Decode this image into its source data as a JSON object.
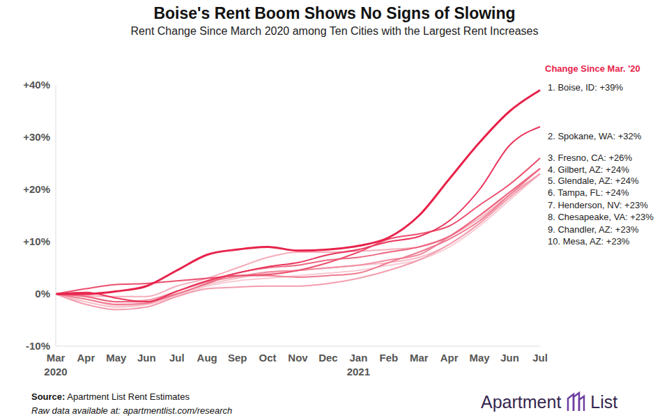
{
  "chart_data": {
    "type": "line",
    "title": "Boise's Rent Boom Shows No Signs of Slowing",
    "subtitle": "Rent Change Since March 2020 among Ten Cities with the Largest Rent Increases",
    "categories": [
      "Mar 2020",
      "Apr",
      "May",
      "Jun",
      "Jul",
      "Aug",
      "Sep",
      "Oct",
      "Nov",
      "Dec",
      "Jan 2021",
      "Feb",
      "Mar",
      "Apr",
      "May",
      "Jun",
      "Jul"
    ],
    "series": [
      {
        "name": "1. Boise, ID: +39%",
        "color": "#e8224a",
        "values": [
          0,
          0,
          0.5,
          1.5,
          4.5,
          7.5,
          8.5,
          9,
          8.3,
          8.5,
          9.2,
          10.8,
          15,
          22,
          29,
          35,
          39
        ]
      },
      {
        "name": "2. Spokane, WA: +32%",
        "color": "#e9365b",
        "values": [
          0,
          0.3,
          -0.8,
          -1.5,
          0.5,
          2.5,
          4,
          5.2,
          6,
          7.5,
          8.5,
          10,
          11,
          14,
          20,
          28.5,
          32
        ]
      },
      {
        "name": "3. Fresno, CA: +26%",
        "color": "#eb4f6d",
        "values": [
          0,
          1,
          1.8,
          2,
          2.5,
          3,
          3.5,
          3.7,
          4.5,
          6,
          8,
          10.5,
          11.5,
          13,
          17,
          21,
          26
        ]
      },
      {
        "name": "4. Gilbert, AZ: +24%",
        "color": "#ed6680",
        "values": [
          0,
          -0.5,
          -1.5,
          -1.5,
          0,
          2,
          4,
          5,
          5.5,
          6.5,
          7,
          8,
          9,
          11,
          15,
          19.5,
          24
        ]
      },
      {
        "name": "5. Glendale, AZ: +24%",
        "color": "#ef7a90",
        "values": [
          0,
          -1,
          -2,
          -1.8,
          0.5,
          2.5,
          3.5,
          3.5,
          3.2,
          3.5,
          4,
          6,
          8,
          10.5,
          14,
          19,
          24
        ]
      },
      {
        "name": "6. Tampa, FL: +24%",
        "color": "#f18ca0",
        "values": [
          0,
          -0.5,
          -1.5,
          -1.2,
          0.5,
          2.3,
          3.3,
          4.2,
          4.5,
          5,
          5.5,
          6.5,
          7.5,
          11,
          15,
          19.5,
          24
        ]
      },
      {
        "name": "7. Henderson, NV: +23%",
        "color": "#f39dae",
        "values": [
          0,
          -2,
          -3,
          -2.5,
          -0.5,
          1,
          1.3,
          1.5,
          1.5,
          2,
          3,
          4.5,
          6.5,
          9.5,
          13.5,
          18.5,
          23
        ]
      },
      {
        "name": "8. Chesapeake, VA: +23%",
        "color": "#f5adbb",
        "values": [
          0,
          -0.3,
          -0.5,
          -0.5,
          1.5,
          3,
          5,
          7,
          8,
          8,
          8.2,
          8.5,
          9,
          11,
          14.5,
          19,
          23
        ]
      },
      {
        "name": "9. Chandler, AZ: +23%",
        "color": "#f7bcc7",
        "values": [
          0,
          -1.5,
          -2.5,
          -2,
          0,
          1.8,
          3,
          4,
          4.5,
          5,
          5.5,
          6,
          7,
          9.5,
          13.5,
          18.5,
          23
        ]
      },
      {
        "name": "10. Mesa, AZ: +23%",
        "color": "#f9cad3",
        "values": [
          0,
          -1,
          -2.2,
          -2,
          -0.3,
          1.5,
          2.5,
          3,
          3.5,
          4,
          4.5,
          5.5,
          6.5,
          9,
          13,
          18,
          23
        ]
      }
    ],
    "ylim": [
      -10,
      40
    ],
    "yticks": [
      {
        "value": -10,
        "label": "-10%"
      },
      {
        "value": 0,
        "label": "0%"
      },
      {
        "value": 10,
        "label": "+10%"
      },
      {
        "value": 20,
        "label": "+20%"
      },
      {
        "value": 30,
        "label": "+30%"
      },
      {
        "value": 40,
        "label": "+40%"
      }
    ],
    "grid": false,
    "legend": "right",
    "legend_title": "Change Since Mar. '20",
    "source_label": "Source:",
    "source": "Apartment List Rent Estimates",
    "note": "Raw data available at: apartmentlist.com/research",
    "brand": "Apartment List"
  }
}
